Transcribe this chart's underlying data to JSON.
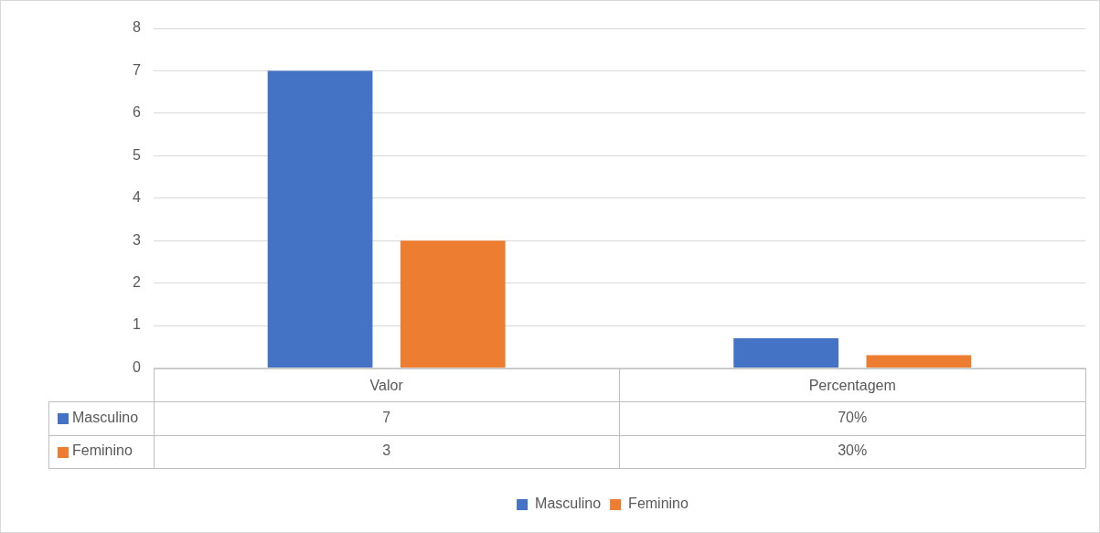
{
  "chart_data": {
    "type": "bar",
    "categories": [
      "Valor",
      "Percentagem"
    ],
    "series": [
      {
        "name": "Masculino",
        "color": "#4472c4",
        "values": [
          7,
          0.7
        ],
        "value_labels": [
          "7",
          "70%"
        ]
      },
      {
        "name": "Feminino",
        "color": "#ed7d31",
        "values": [
          3,
          0.3
        ],
        "value_labels": [
          "3",
          "30%"
        ]
      }
    ],
    "ylim": [
      0,
      8
    ],
    "yticks": [
      0,
      1,
      2,
      3,
      4,
      5,
      6,
      7,
      8
    ],
    "grid": "y",
    "legend": "bottom"
  }
}
